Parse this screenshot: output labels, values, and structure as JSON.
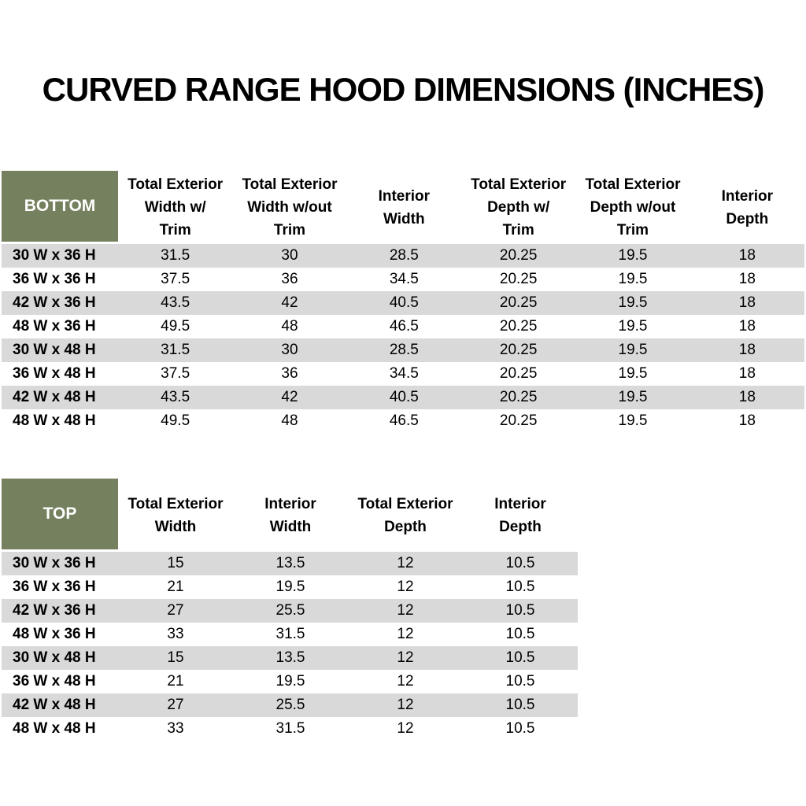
{
  "title": "CURVED RANGE HOOD DIMENSIONS (INCHES)",
  "colors": {
    "header_bg": "#75805e",
    "header_text": "#ffffff",
    "stripe": "#d9d9d9",
    "text": "#000000"
  },
  "bottom_table": {
    "corner": "BOTTOM",
    "columns": [
      "Total Exterior\nWidth w/\nTrim",
      "Total Exterior\nWidth w/out\nTrim",
      "Interior\nWidth",
      "Total Exterior\nDepth w/\nTrim",
      "Total Exterior\nDepth w/out\nTrim",
      "Interior\nDepth"
    ],
    "rows": [
      {
        "label": "30 W x 36 H",
        "values": [
          "31.5",
          "30",
          "28.5",
          "20.25",
          "19.5",
          "18"
        ]
      },
      {
        "label": "36 W x 36 H",
        "values": [
          "37.5",
          "36",
          "34.5",
          "20.25",
          "19.5",
          "18"
        ]
      },
      {
        "label": "42 W x 36 H",
        "values": [
          "43.5",
          "42",
          "40.5",
          "20.25",
          "19.5",
          "18"
        ]
      },
      {
        "label": "48 W x 36 H",
        "values": [
          "49.5",
          "48",
          "46.5",
          "20.25",
          "19.5",
          "18"
        ]
      },
      {
        "label": "30 W x 48 H",
        "values": [
          "31.5",
          "30",
          "28.5",
          "20.25",
          "19.5",
          "18"
        ]
      },
      {
        "label": "36 W x 48 H",
        "values": [
          "37.5",
          "36",
          "34.5",
          "20.25",
          "19.5",
          "18"
        ]
      },
      {
        "label": "42 W x 48 H",
        "values": [
          "43.5",
          "42",
          "40.5",
          "20.25",
          "19.5",
          "18"
        ]
      },
      {
        "label": "48 W x 48 H",
        "values": [
          "49.5",
          "48",
          "46.5",
          "20.25",
          "19.5",
          "18"
        ]
      }
    ]
  },
  "top_table": {
    "corner": "TOP",
    "columns": [
      "Total Exterior\nWidth",
      "Interior\nWidth",
      "Total Exterior\nDepth",
      "Interior\nDepth"
    ],
    "rows": [
      {
        "label": "30 W x 36 H",
        "values": [
          "15",
          "13.5",
          "12",
          "10.5"
        ]
      },
      {
        "label": "36 W x 36 H",
        "values": [
          "21",
          "19.5",
          "12",
          "10.5"
        ]
      },
      {
        "label": "42 W x 36 H",
        "values": [
          "27",
          "25.5",
          "12",
          "10.5"
        ]
      },
      {
        "label": "48 W x 36 H",
        "values": [
          "33",
          "31.5",
          "12",
          "10.5"
        ]
      },
      {
        "label": "30 W x 48 H",
        "values": [
          "15",
          "13.5",
          "12",
          "10.5"
        ]
      },
      {
        "label": "36 W x 48 H",
        "values": [
          "21",
          "19.5",
          "12",
          "10.5"
        ]
      },
      {
        "label": "42 W x 48 H",
        "values": [
          "27",
          "25.5",
          "12",
          "10.5"
        ]
      },
      {
        "label": "48 W x 48 H",
        "values": [
          "33",
          "31.5",
          "12",
          "10.5"
        ]
      }
    ]
  }
}
